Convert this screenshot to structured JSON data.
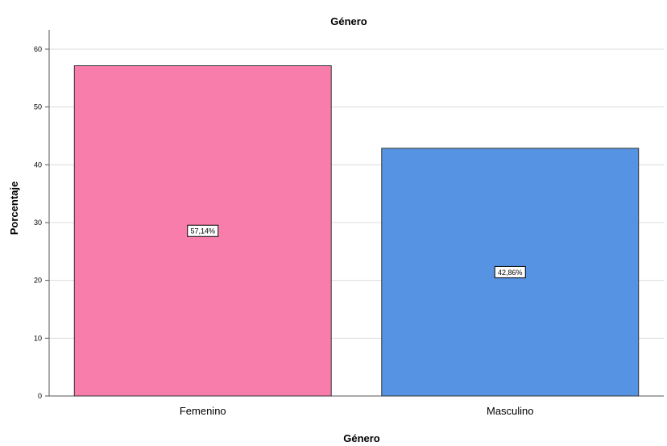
{
  "chart_data": {
    "type": "bar",
    "title": "Género",
    "xlabel": "Género",
    "ylabel": "Porcentaje",
    "categories": [
      "Femenino",
      "Masculino"
    ],
    "values": [
      57.14,
      42.86
    ],
    "data_labels": [
      "57,14%",
      "42,86%"
    ],
    "ylim": [
      0,
      60
    ],
    "yticks": [
      "0",
      "10",
      "20",
      "30",
      "40",
      "50",
      "60"
    ],
    "bar_colors": [
      "#f97dab",
      "#5693e3"
    ],
    "grid": true,
    "legend": "none"
  }
}
